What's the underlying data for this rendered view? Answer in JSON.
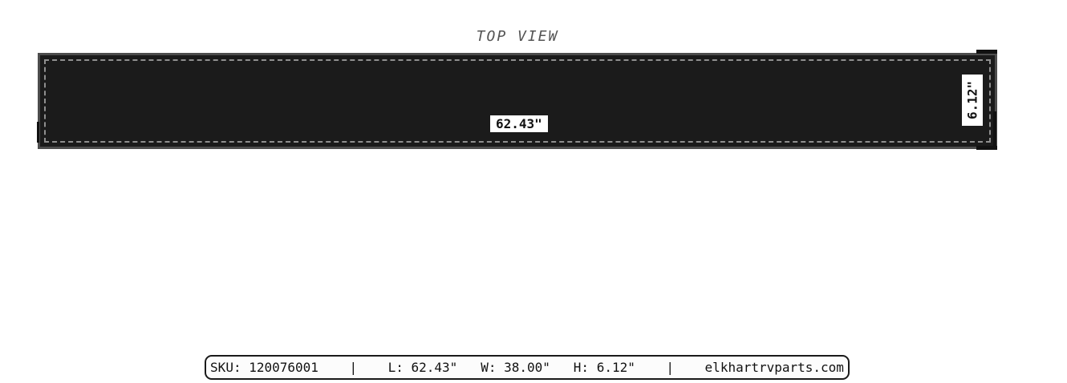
{
  "title": "TOP VIEW",
  "drawing": {
    "length_label": "62.43\"",
    "height_label": "6.12\"",
    "colors": {
      "panel_fill": "#1b1b1b",
      "panel_border": "#4d4d4d",
      "dashed_outline": "#8f8f8f",
      "dim_label_bg": "#ffffff",
      "dim_label_text": "#111111",
      "title_text": "#555555"
    }
  },
  "footer": {
    "sku": "120076001",
    "length": "62.43\"",
    "width": "38.00\"",
    "height": "6.12\"",
    "website": "elkhartrvparts.com",
    "full_text": "SKU: 120076001    |    L: 62.43\"   W: 38.00\"   H: 6.12\"    |    elkhartrvparts.com"
  }
}
